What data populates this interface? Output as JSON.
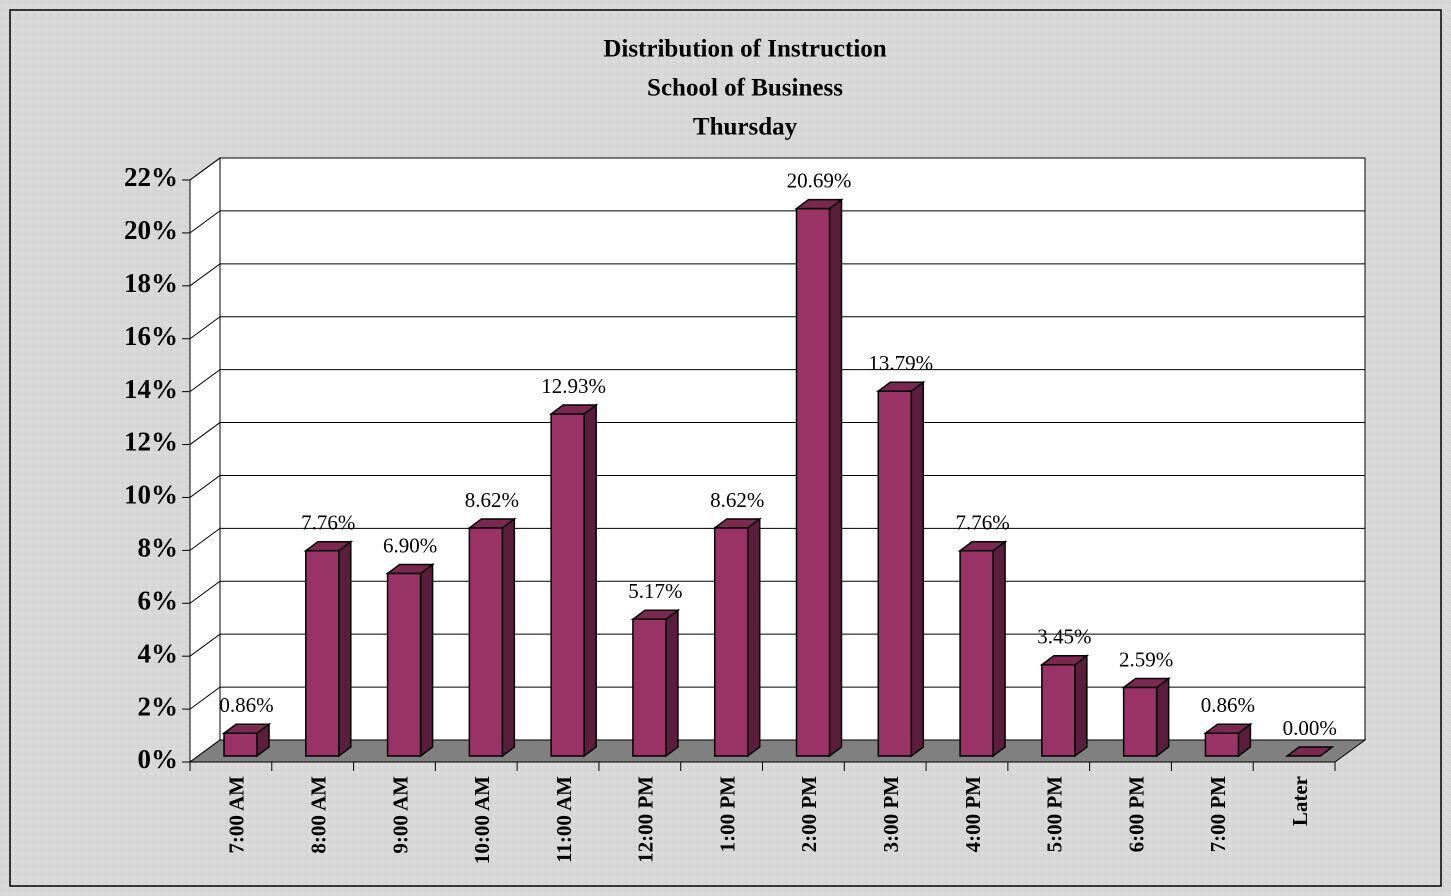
{
  "chart_data": {
    "type": "bar3d",
    "title": [
      "Distribution of Instruction",
      "School of Business",
      "Thursday"
    ],
    "categories": [
      "7:00 AM",
      "8:00 AM",
      "9:00 AM",
      "10:00 AM",
      "11:00 AM",
      "12:00 PM",
      "1:00 PM",
      "2:00 PM",
      "3:00 PM",
      "4:00 PM",
      "5:00 PM",
      "6:00 PM",
      "7:00 PM",
      "Later"
    ],
    "values": [
      0.86,
      7.76,
      6.9,
      8.62,
      12.93,
      5.17,
      8.62,
      20.69,
      13.79,
      7.76,
      3.45,
      2.59,
      0.86,
      0.0
    ],
    "value_labels": [
      "0.86%",
      "7.76%",
      "6.90%",
      "8.62%",
      "12.93%",
      "5.17%",
      "8.62%",
      "20.69%",
      "13.79%",
      "7.76%",
      "3.45%",
      "2.59%",
      "0.86%",
      "0.00%"
    ],
    "color": "#993366",
    "ylim": [
      0,
      22
    ],
    "yticks": [
      {
        "value": 0,
        "label": "0%"
      },
      {
        "value": 2,
        "label": "2%"
      },
      {
        "value": 4,
        "label": "4%"
      },
      {
        "value": 6,
        "label": "6%"
      },
      {
        "value": 8,
        "label": "8%"
      },
      {
        "value": 10,
        "label": "10%"
      },
      {
        "value": 12,
        "label": "12%"
      },
      {
        "value": 14,
        "label": "14%"
      },
      {
        "value": 16,
        "label": "16%"
      },
      {
        "value": 18,
        "label": "18%"
      },
      {
        "value": 20,
        "label": "20%"
      },
      {
        "value": 22,
        "label": "22%"
      }
    ],
    "grid": true
  }
}
